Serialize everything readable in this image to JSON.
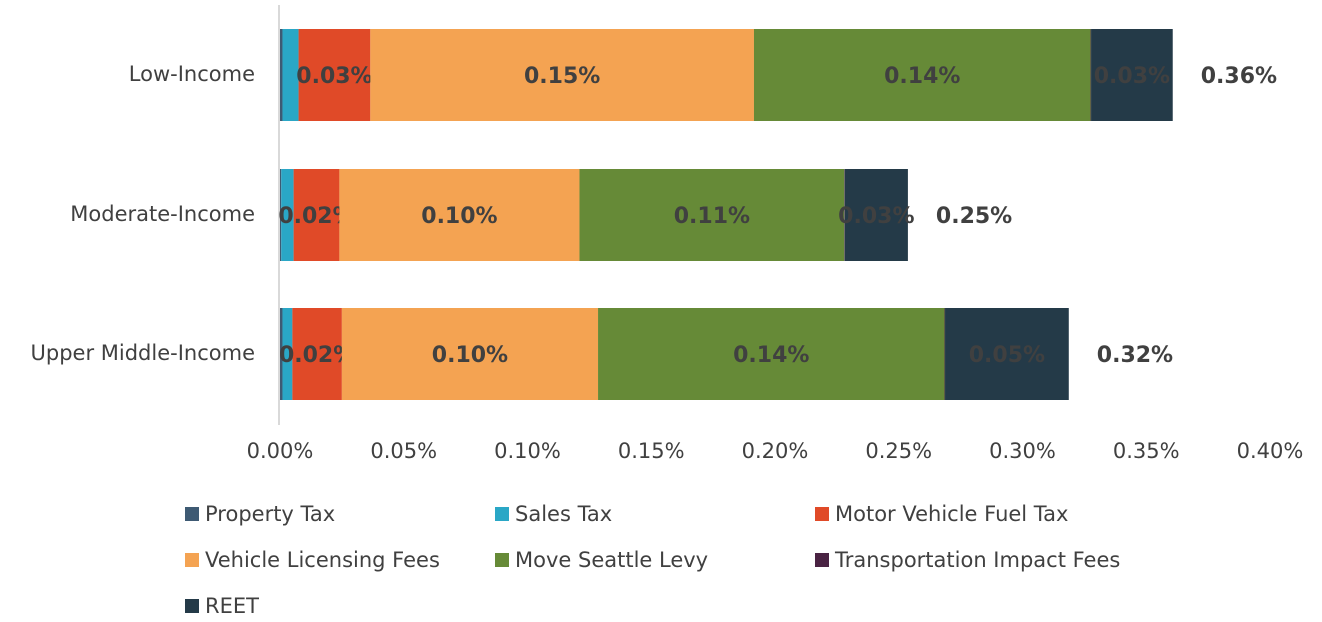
{
  "chart_data": {
    "type": "stacked-bar-horizontal",
    "categories": [
      "Low-Income",
      "Moderate-Income",
      "Upper Middle-Income"
    ],
    "series": [
      {
        "name": "Property Tax",
        "color": "#3e5a73",
        "values": [
          0.001,
          0.0005,
          0.001
        ]
      },
      {
        "name": "Sales Tax",
        "color": "#2aa7c6",
        "values": [
          0.0065,
          0.005,
          0.004
        ]
      },
      {
        "name": "Motor Vehicle Fuel Tax",
        "color": "#e04a28",
        "values": [
          0.029,
          0.0185,
          0.02
        ],
        "value_labels": [
          "0.03%",
          "0.02%",
          "0.02%"
        ]
      },
      {
        "name": "Vehicle Licensing Fees",
        "color": "#f4a352",
        "values": [
          0.155,
          0.097,
          0.1035
        ],
        "value_labels": [
          "0.15%",
          "0.10%",
          "0.10%"
        ]
      },
      {
        "name": "Move Seattle Levy",
        "color": "#668a37",
        "values": [
          0.136,
          0.107,
          0.14
        ],
        "value_labels": [
          "0.14%",
          "0.11%",
          "0.14%"
        ]
      },
      {
        "name": "Transportation Impact Fees",
        "color": "#4a2343",
        "values": [
          0.0002,
          0.0002,
          0.0002
        ]
      },
      {
        "name": "REET",
        "color": "#243a48",
        "values": [
          0.033,
          0.0255,
          0.05
        ],
        "value_labels": [
          "0.03%",
          "0.03%",
          "0.05%"
        ]
      }
    ],
    "totals": {
      "values": [
        0.36,
        0.25,
        0.32
      ],
      "value_labels": [
        "0.36%",
        "0.25%",
        "0.32%"
      ]
    },
    "xlim": [
      0,
      0.4
    ],
    "xticks": [
      {
        "value": 0,
        "label": "0.00%"
      },
      {
        "value": 0.05,
        "label": "0.05%"
      },
      {
        "value": 0.1,
        "label": "0.10%"
      },
      {
        "value": 0.15,
        "label": "0.15%"
      },
      {
        "value": 0.2,
        "label": "0.20%"
      },
      {
        "value": 0.25,
        "label": "0.25%"
      },
      {
        "value": 0.3,
        "label": "0.30%"
      },
      {
        "value": 0.35,
        "label": "0.35%"
      },
      {
        "value": 0.4,
        "label": "0.40%"
      }
    ],
    "legend": "bottom"
  }
}
